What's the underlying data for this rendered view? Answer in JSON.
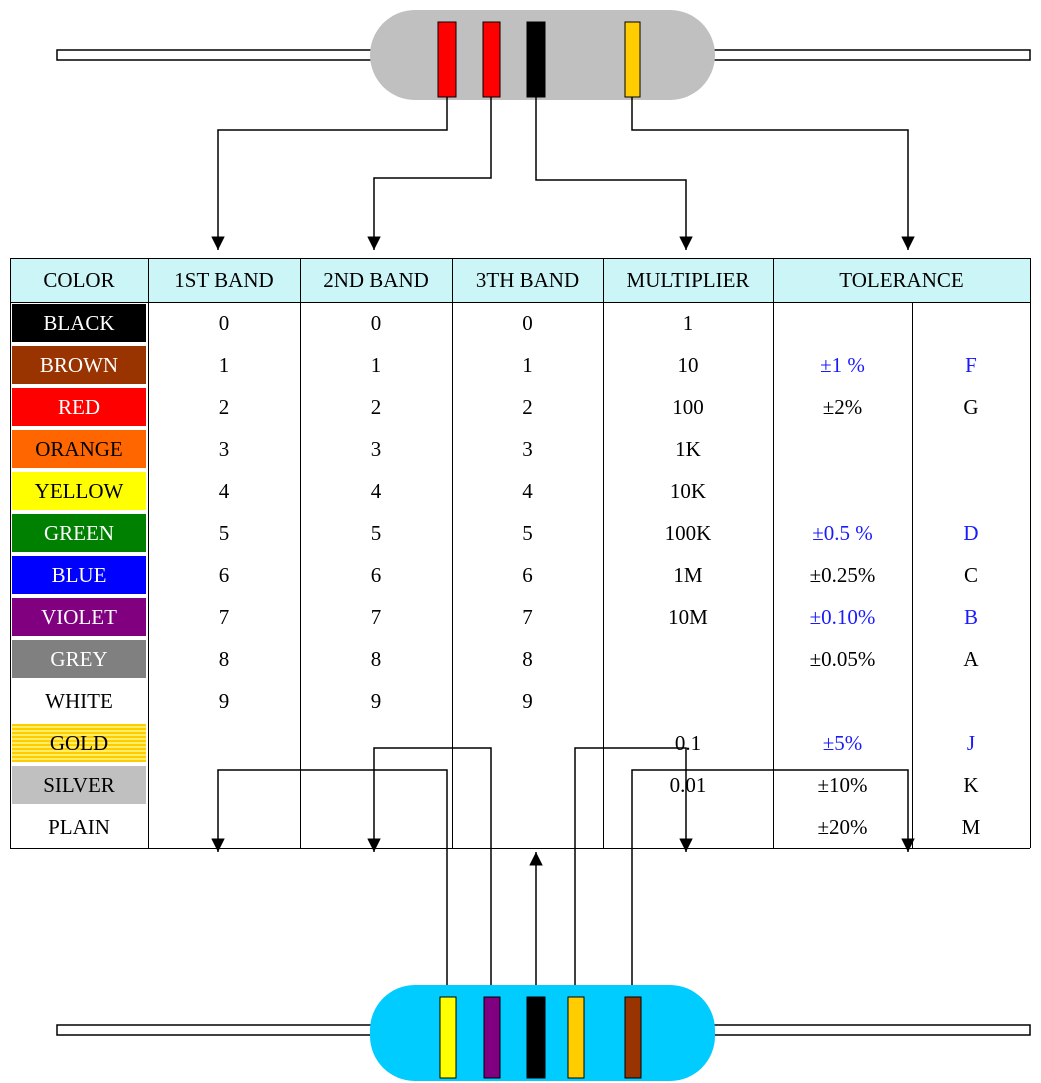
{
  "table": {
    "header": [
      "COLOR",
      "1ST BAND",
      "2ND BAND",
      "3TH BAND",
      "MULTIPLIER",
      "TOLERANCE"
    ],
    "rows": [
      [
        "BLACK",
        0,
        0,
        0,
        1,
        null,
        null
      ],
      [
        "BROWN",
        1,
        1,
        1,
        10,
        "±1 %",
        "F"
      ],
      [
        "RED",
        2,
        2,
        2,
        100,
        "±2%",
        "G"
      ],
      [
        "ORANGE",
        3,
        3,
        3,
        "1K",
        null,
        null
      ],
      [
        "YELLOW",
        4,
        4,
        4,
        "10K",
        null,
        null
      ],
      [
        "GREEN",
        5,
        5,
        5,
        "100K",
        "±0.5 %",
        "D"
      ],
      [
        "BLUE",
        6,
        6,
        6,
        "1M",
        "±0.25%",
        "C"
      ],
      [
        "VIOLET",
        7,
        7,
        7,
        "10M",
        "±0.10%",
        "B"
      ],
      [
        "GREY",
        8,
        8,
        8,
        null,
        "±0.05%",
        "A"
      ],
      [
        "WHITE",
        9,
        9,
        9,
        null,
        null,
        null
      ],
      [
        "GOLD",
        null,
        null,
        null,
        0.1,
        "±5%",
        "J"
      ],
      [
        "SILVER",
        null,
        null,
        null,
        0.01,
        "±10%",
        "K"
      ],
      [
        "PLAIN",
        null,
        null,
        null,
        null,
        "±20%",
        "M"
      ]
    ]
  }
}
